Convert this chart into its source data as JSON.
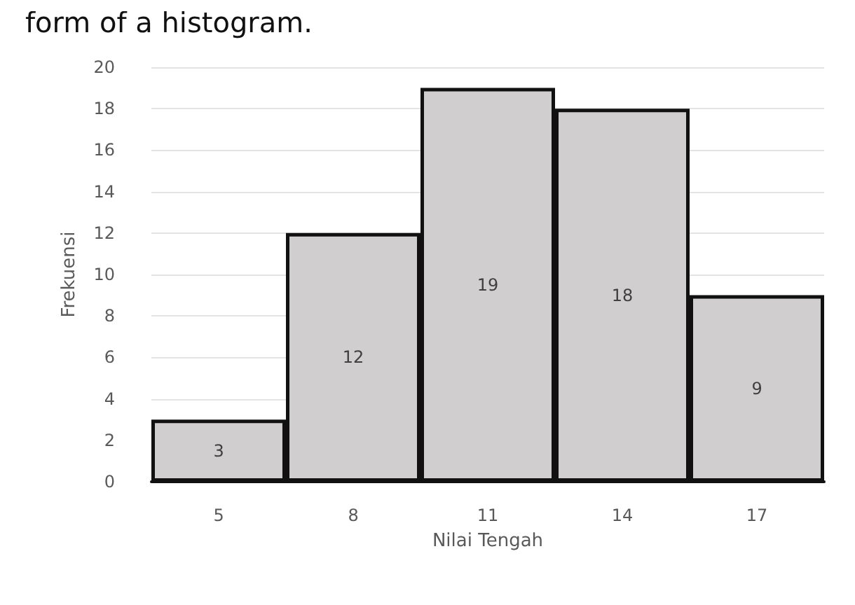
{
  "chart_data": {
    "type": "bar",
    "annotations": [
      "form of a histogram."
    ],
    "xlabel": "Nilai Tengah",
    "ylabel": "Frekuensi",
    "categories": [
      "5",
      "8",
      "11",
      "14",
      "17"
    ],
    "values": [
      3,
      12,
      19,
      18,
      9
    ],
    "color": "#d0cecf",
    "ylim": [
      0,
      20
    ],
    "yticks": [
      0,
      2,
      4,
      6,
      8,
      10,
      12,
      14,
      16,
      18,
      20
    ],
    "grid": "y",
    "data_labels": true
  }
}
